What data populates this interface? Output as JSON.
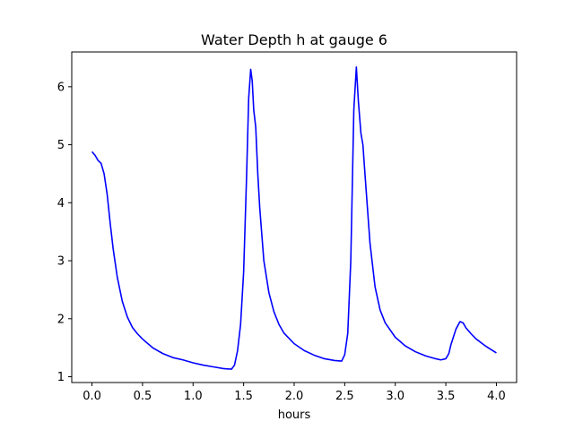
{
  "chart_data": {
    "type": "line",
    "title": "Water Depth h at gauge 6",
    "xlabel": "hours",
    "ylabel": "",
    "xlim": [
      -0.2,
      4.2
    ],
    "ylim": [
      0.9,
      6.6
    ],
    "xticks": [
      0.0,
      0.5,
      1.0,
      1.5,
      2.0,
      2.5,
      3.0,
      3.5,
      4.0
    ],
    "xtick_labels": [
      "0.0",
      "0.5",
      "1.0",
      "1.5",
      "2.0",
      "2.5",
      "3.0",
      "3.5",
      "4.0"
    ],
    "yticks": [
      1,
      2,
      3,
      4,
      5,
      6
    ],
    "ytick_labels": [
      "1",
      "2",
      "3",
      "4",
      "5",
      "6"
    ],
    "grid": false,
    "series": [
      {
        "color": "#0000ff",
        "x": [
          0.0,
          0.03,
          0.06,
          0.09,
          0.12,
          0.15,
          0.18,
          0.21,
          0.25,
          0.3,
          0.35,
          0.4,
          0.45,
          0.5,
          0.6,
          0.7,
          0.8,
          0.9,
          1.0,
          1.1,
          1.2,
          1.3,
          1.38,
          1.41,
          1.44,
          1.47,
          1.5,
          1.53,
          1.55,
          1.57,
          1.585,
          1.6,
          1.62,
          1.64,
          1.66,
          1.7,
          1.75,
          1.8,
          1.85,
          1.9,
          2.0,
          2.1,
          2.2,
          2.3,
          2.4,
          2.47,
          2.5,
          2.53,
          2.56,
          2.59,
          2.615,
          2.635,
          2.66,
          2.68,
          2.7,
          2.75,
          2.8,
          2.85,
          2.9,
          3.0,
          3.1,
          3.2,
          3.3,
          3.4,
          3.45,
          3.5,
          3.53,
          3.55,
          3.6,
          3.64,
          3.67,
          3.7,
          3.75,
          3.8,
          3.9,
          4.0
        ],
        "y": [
          4.88,
          4.82,
          4.73,
          4.68,
          4.5,
          4.15,
          3.65,
          3.2,
          2.72,
          2.3,
          2.03,
          1.85,
          1.74,
          1.65,
          1.5,
          1.4,
          1.33,
          1.29,
          1.24,
          1.2,
          1.17,
          1.14,
          1.13,
          1.2,
          1.45,
          1.9,
          2.8,
          4.5,
          5.8,
          6.3,
          6.1,
          5.6,
          5.3,
          4.5,
          3.9,
          3.0,
          2.45,
          2.12,
          1.9,
          1.75,
          1.57,
          1.45,
          1.37,
          1.31,
          1.28,
          1.27,
          1.38,
          1.75,
          3.0,
          5.6,
          6.34,
          5.75,
          5.2,
          5.0,
          4.5,
          3.3,
          2.55,
          2.15,
          1.93,
          1.68,
          1.53,
          1.43,
          1.36,
          1.31,
          1.29,
          1.31,
          1.4,
          1.55,
          1.82,
          1.95,
          1.93,
          1.84,
          1.74,
          1.65,
          1.52,
          1.41
        ]
      }
    ]
  }
}
